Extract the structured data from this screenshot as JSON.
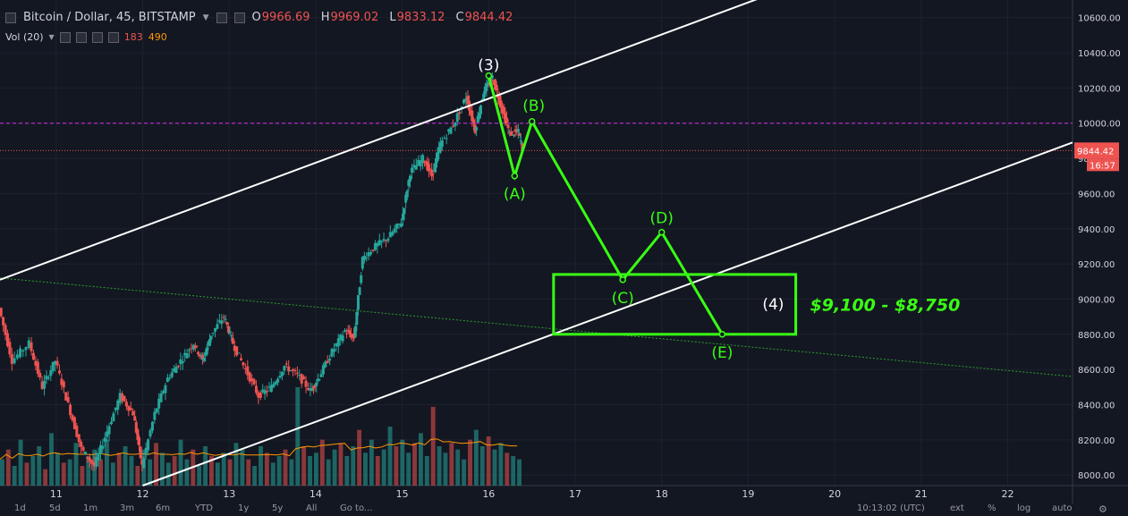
{
  "header": {
    "symbol": "Bitcoin / Dollar, 45, BITSTAMP",
    "ohlc": [
      {
        "key": "O",
        "value": "9966.69"
      },
      {
        "key": "H",
        "value": "9969.02"
      },
      {
        "key": "L",
        "value": "9833.12"
      },
      {
        "key": "C",
        "value": "9844.42"
      }
    ]
  },
  "volume_indicator": {
    "label": "Vol (20)",
    "value1": "183",
    "value2": "490"
  },
  "colors": {
    "background": "#131722",
    "up": "#26a69a",
    "down": "#ef5350",
    "grid": "#1e222d",
    "annotation": "#39ff14",
    "channel": "#ffffff",
    "dashed_purple": "#9c27b0",
    "price_line": "#ef5350"
  },
  "bottom_bar": {
    "timeframes": [
      "1d",
      "5d",
      "1m",
      "3m",
      "6m",
      "YTD",
      "1y",
      "5y",
      "All",
      "Go to..."
    ],
    "clock": "10:13:02 (UTC)",
    "options": [
      "ext",
      "%",
      "log",
      "auto"
    ]
  },
  "chart_data": {
    "type": "candlestick",
    "title": "Bitcoin / Dollar, 45, BITSTAMP",
    "x_ticks": [
      "11",
      "12",
      "13",
      "14",
      "15",
      "16",
      "17",
      "18",
      "19",
      "20",
      "21",
      "22"
    ],
    "y_ticks": [
      "8000.00",
      "8200.00",
      "8400.00",
      "8600.00",
      "8800.00",
      "9000.00",
      "9200.00",
      "9400.00",
      "9600.00",
      "9800.00",
      "10000.00",
      "10200.00",
      "10400.00",
      "10600.00"
    ],
    "y_range": [
      7940,
      10700
    ],
    "x_range": [
      10.35,
      22.75
    ],
    "last_price": {
      "value": 9844.42,
      "label": "9844.42",
      "countdown": "16:57"
    },
    "dashed_level": 10000,
    "price_path": [
      [
        10.35,
        8950
      ],
      [
        10.5,
        8650
      ],
      [
        10.7,
        8750
      ],
      [
        10.85,
        8500
      ],
      [
        11.0,
        8650
      ],
      [
        11.15,
        8400
      ],
      [
        11.3,
        8150
      ],
      [
        11.45,
        8050
      ],
      [
        11.6,
        8250
      ],
      [
        11.75,
        8450
      ],
      [
        11.9,
        8350
      ],
      [
        12.0,
        8050
      ],
      [
        12.15,
        8350
      ],
      [
        12.3,
        8550
      ],
      [
        12.45,
        8650
      ],
      [
        12.6,
        8750
      ],
      [
        12.7,
        8650
      ],
      [
        12.8,
        8800
      ],
      [
        12.95,
        8900
      ],
      [
        13.05,
        8750
      ],
      [
        13.2,
        8600
      ],
      [
        13.35,
        8450
      ],
      [
        13.5,
        8500
      ],
      [
        13.65,
        8620
      ],
      [
        13.8,
        8570
      ],
      [
        13.95,
        8480
      ],
      [
        14.05,
        8560
      ],
      [
        14.2,
        8700
      ],
      [
        14.35,
        8820
      ],
      [
        14.45,
        8780
      ],
      [
        14.55,
        9230
      ],
      [
        14.7,
        9300
      ],
      [
        14.85,
        9350
      ],
      [
        15.0,
        9440
      ],
      [
        15.1,
        9720
      ],
      [
        15.25,
        9800
      ],
      [
        15.35,
        9700
      ],
      [
        15.45,
        9880
      ],
      [
        15.6,
        9990
      ],
      [
        15.75,
        10150
      ],
      [
        15.85,
        9960
      ],
      [
        15.95,
        10180
      ],
      [
        16.05,
        10260
      ],
      [
        16.15,
        10100
      ],
      [
        16.25,
        9940
      ],
      [
        16.35,
        9950
      ],
      [
        16.4,
        9845
      ]
    ],
    "volume": [
      40,
      55,
      30,
      70,
      35,
      45,
      60,
      25,
      80,
      50,
      35,
      40,
      65,
      30,
      45,
      55,
      40,
      70,
      35,
      50,
      60,
      45,
      30,
      55,
      40,
      65,
      50,
      35,
      45,
      70,
      40,
      55,
      30,
      60,
      45,
      35,
      50,
      40,
      65,
      55,
      40,
      30,
      60,
      50,
      35,
      45,
      55,
      40,
      150,
      60,
      45,
      50,
      70,
      40,
      55,
      65,
      45,
      60,
      85,
      50,
      70,
      45,
      55,
      90,
      60,
      70,
      50,
      65,
      80,
      45,
      120,
      60,
      50,
      65,
      55,
      40,
      70,
      85,
      60,
      75,
      55,
      65,
      50,
      45,
      40
    ],
    "channel": {
      "upper": [
        [
          10.35,
          9110
        ],
        [
          19.35,
          10750
        ]
      ],
      "lower": [
        [
          12.0,
          7940
        ],
        [
          22.75,
          9890
        ]
      ]
    },
    "trend_line": [
      [
        10.35,
        9120
      ],
      [
        22.75,
        8560
      ]
    ],
    "wave_path": [
      [
        16.0,
        10270
      ],
      [
        16.3,
        9700
      ],
      [
        16.5,
        10010
      ],
      [
        17.55,
        9110
      ],
      [
        18.0,
        9380
      ],
      [
        18.7,
        8800
      ]
    ],
    "wave_labels": [
      {
        "text": "(3)",
        "x": 16.0,
        "y": 10270,
        "color": "white"
      },
      {
        "text": "(A)",
        "x": 16.3,
        "y": 9700,
        "color": "green"
      },
      {
        "text": "(B)",
        "x": 16.5,
        "y": 10010,
        "color": "green"
      },
      {
        "text": "(C)",
        "x": 17.55,
        "y": 9110,
        "color": "green"
      },
      {
        "text": "(D)",
        "x": 18.0,
        "y": 9380,
        "color": "green"
      },
      {
        "text": "(E)",
        "x": 18.7,
        "y": 8800,
        "color": "green"
      },
      {
        "text": "(4)",
        "x": 19.0,
        "y": 8890,
        "color": "white"
      }
    ],
    "target_box": {
      "x1": 16.75,
      "x2": 19.55,
      "y1": 9140,
      "y2": 8800
    },
    "target_label": "$9,100 - $8,750"
  }
}
